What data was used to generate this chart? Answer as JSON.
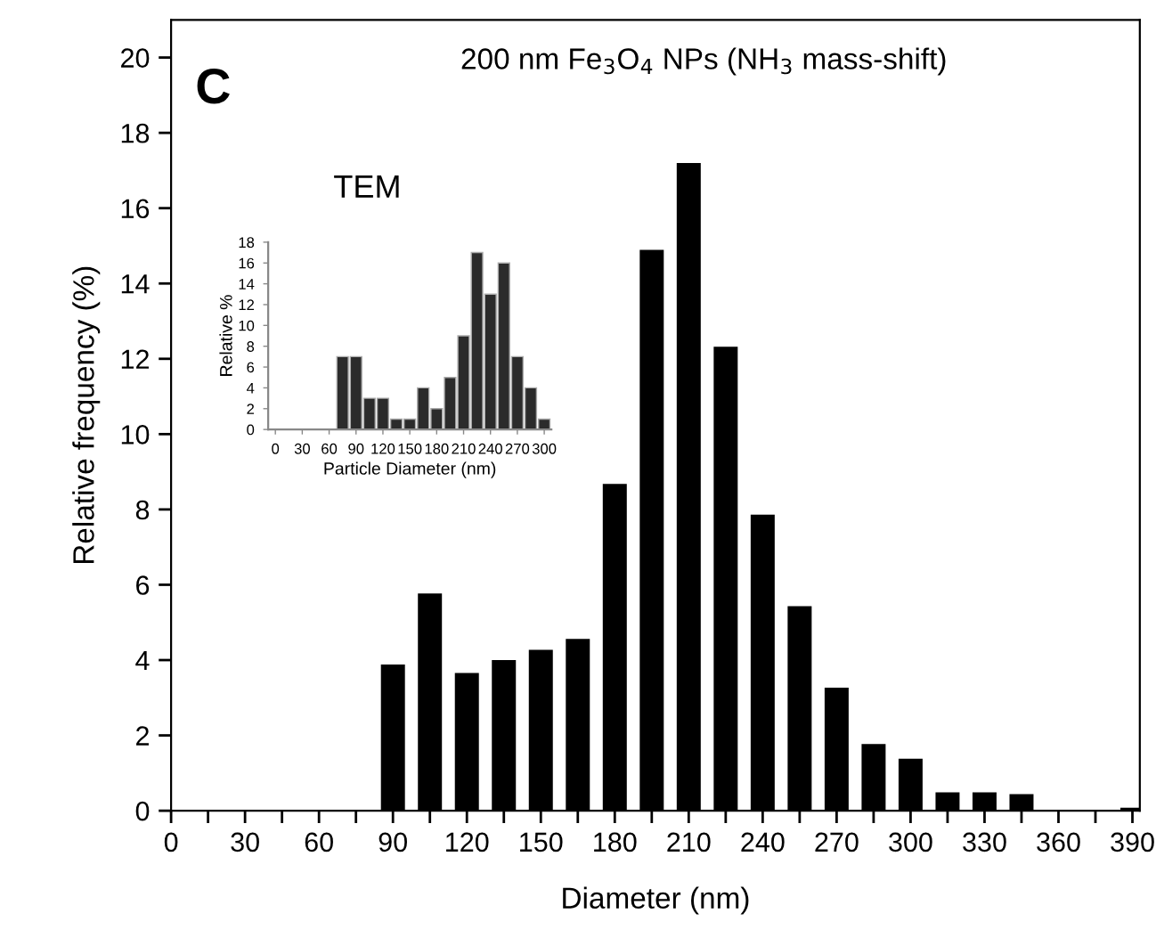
{
  "chart_data": [
    {
      "type": "bar",
      "title": "200 nm Fe$_{3}$O$_{4}$ NPs (NH$_{3}$ mass-shift)",
      "xlabel": "Diameter (nm)",
      "ylabel": "Relative frequency (%)",
      "annotations": [
        "C"
      ],
      "x": [
        90,
        105,
        120,
        135,
        150,
        165,
        180,
        195,
        210,
        225,
        240,
        255,
        270,
        285,
        300,
        315,
        330,
        345,
        360,
        375,
        390
      ],
      "values": [
        3.88,
        5.77,
        3.66,
        4.0,
        4.27,
        4.56,
        8.68,
        14.89,
        17.2,
        12.32,
        7.86,
        5.43,
        3.27,
        1.77,
        1.38,
        0.49,
        0.49,
        0.44,
        0,
        0,
        0.08
      ],
      "color": "#000000",
      "xlim": [
        0,
        393
      ],
      "ylim": [
        0,
        21
      ],
      "xticks": [
        0,
        {
          "value": 15,
          "label": null
        },
        30,
        {
          "value": 45,
          "label": null
        },
        60,
        {
          "value": 75,
          "label": null
        },
        90,
        {
          "value": 105,
          "label": null
        },
        120,
        {
          "value": 135,
          "label": null
        },
        150,
        {
          "value": 165,
          "label": null
        },
        180,
        {
          "value": 195,
          "label": null
        },
        210,
        {
          "value": 225,
          "label": null
        },
        240,
        {
          "value": 255,
          "label": null
        },
        270,
        {
          "value": 285,
          "label": null
        },
        300,
        {
          "value": 315,
          "label": null
        },
        330,
        {
          "value": 345,
          "label": null
        },
        360,
        {
          "value": 375,
          "label": null
        },
        390
      ],
      "yticks": [
        0,
        2,
        4,
        6,
        8,
        10,
        12,
        14,
        16,
        18,
        20
      ],
      "grid": false,
      "legend": false
    },
    {
      "type": "bar",
      "title": "TEM",
      "xlabel": "Particle Diameter (nm)",
      "ylabel": "Relative %",
      "x": [
        75,
        90,
        105,
        120,
        135,
        150,
        165,
        180,
        195,
        210,
        225,
        240,
        255,
        270,
        285,
        300
      ],
      "values": [
        7,
        7,
        3,
        3,
        1,
        1,
        4,
        2,
        5,
        9,
        17,
        13,
        16,
        7,
        4,
        1
      ],
      "color": "#2b2b2b",
      "xlim": [
        -8,
        308
      ],
      "ylim": [
        0,
        18
      ],
      "xticks": [
        0,
        30,
        60,
        90,
        120,
        150,
        180,
        210,
        240,
        270,
        300
      ],
      "yticks": [
        0,
        2,
        4,
        6,
        8,
        10,
        12,
        14,
        16,
        18
      ],
      "grid": false,
      "legend": false
    }
  ]
}
